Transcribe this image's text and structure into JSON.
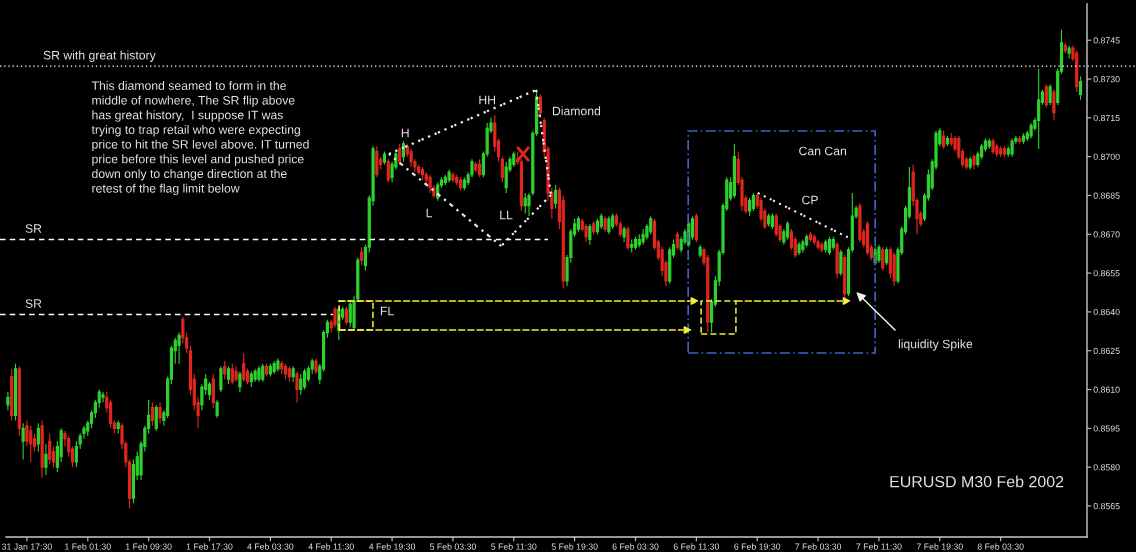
{
  "chart_data": {
    "type": "candlestick",
    "categories": [
      null,
      null,
      null,
      null,
      null,
      "31 Jan 17:30",
      null,
      null,
      null,
      null,
      null,
      null,
      null,
      null,
      null,
      null,
      null,
      null,
      null,
      null,
      null,
      "1 Feb 01:30",
      null,
      null,
      null,
      null,
      null,
      null,
      null,
      null,
      null,
      null,
      null,
      null,
      null,
      null,
      null,
      "1 Feb 09:30",
      null,
      null,
      null,
      null,
      null,
      null,
      null,
      null,
      null,
      null,
      null,
      null,
      null,
      null,
      null,
      "1 Feb 17:30",
      null,
      null,
      null,
      null,
      null,
      null,
      null,
      null,
      null,
      null,
      null,
      null,
      null,
      null,
      null,
      "4 Feb 03:30",
      null,
      null,
      null,
      null,
      null,
      null,
      null,
      null,
      null,
      null,
      null,
      null,
      null,
      null,
      null,
      "4 Feb 11:30",
      null,
      null,
      null,
      null,
      null,
      null,
      null,
      null,
      null,
      null,
      null,
      null,
      null,
      null,
      null,
      "4 Feb 19:30",
      null,
      null,
      null,
      null,
      null,
      null,
      null,
      null,
      null,
      null,
      null,
      null,
      null,
      null,
      null,
      "5 Feb 03:30",
      null,
      null,
      null,
      null,
      null,
      null,
      null,
      null,
      null,
      null,
      null,
      null,
      null,
      null,
      null,
      "5 Feb 11:30",
      null,
      null,
      null,
      null,
      null,
      null,
      null,
      null,
      null,
      null,
      null,
      null,
      null,
      null,
      null,
      "5 Feb 19:30",
      null,
      null,
      null,
      null,
      null,
      null,
      null,
      null,
      null,
      null,
      null,
      null,
      null,
      null,
      null,
      "6 Feb 03:30",
      null,
      null,
      null,
      null,
      null,
      null,
      null,
      null,
      null,
      null,
      null,
      null,
      null,
      null,
      null,
      "6 Feb 11:30",
      null,
      null,
      null,
      null,
      null,
      null,
      null,
      null,
      null,
      null,
      null,
      null,
      null,
      null,
      null,
      "6 Feb 19:30",
      null,
      null,
      null,
      null,
      null,
      null,
      null,
      null,
      null,
      null,
      null,
      null,
      null,
      null,
      null,
      "7 Feb 03:30",
      null,
      null,
      null,
      null,
      null,
      null,
      null,
      null,
      null,
      null,
      null,
      null,
      null,
      null,
      null,
      "7 Feb 11:30",
      null,
      null,
      null,
      null,
      null,
      null,
      null,
      null,
      null,
      null,
      null,
      null,
      null,
      null,
      null,
      "7 Feb 19:30",
      null,
      null,
      null,
      null,
      null,
      null,
      null,
      null,
      null,
      null,
      null,
      null,
      null,
      null,
      null,
      "8 Feb 03:30",
      null,
      null,
      null,
      null,
      null,
      null,
      null,
      null,
      null,
      null,
      null,
      null,
      null,
      null,
      null,
      null,
      null,
      null,
      null,
      null,
      null
    ],
    "ohlc": [
      [
        0.8604,
        0.8609,
        0.8602,
        0.8607
      ],
      [
        0.8615,
        0.8618,
        0.8598,
        0.86
      ],
      [
        0.86,
        0.862,
        0.8598,
        0.8618
      ],
      [
        0.8618,
        0.8619,
        0.8592,
        0.8595
      ],
      [
        0.859,
        0.8597,
        0.8583,
        0.8595
      ],
      [
        0.8596,
        0.8598,
        0.8588,
        0.859
      ],
      [
        0.8594,
        0.8596,
        0.8582,
        0.8589
      ],
      [
        0.8591,
        0.8593,
        0.8586,
        0.8588
      ],
      [
        0.8589,
        0.8597,
        0.8586,
        0.8595
      ],
      [
        0.8596,
        0.8598,
        0.8576,
        0.858
      ],
      [
        0.858,
        0.8589,
        0.8577,
        0.8585
      ],
      [
        0.859,
        0.8593,
        0.8581,
        0.8583
      ],
      [
        0.8586,
        0.8588,
        0.858,
        0.8582
      ],
      [
        0.858,
        0.859,
        0.8578,
        0.8588
      ],
      [
        0.8584,
        0.8595,
        0.8582,
        0.8594
      ],
      [
        0.8593,
        0.8594,
        0.8588,
        0.8591
      ],
      [
        0.8591,
        0.8592,
        0.8584,
        0.8586
      ],
      [
        0.8587,
        0.8588,
        0.858,
        0.8582
      ],
      [
        0.8582,
        0.859,
        0.858,
        0.8588
      ],
      [
        0.8589,
        0.8593,
        0.8587,
        0.8592
      ],
      [
        0.8593,
        0.8596,
        0.8591,
        0.8595
      ],
      [
        0.8594,
        0.8598,
        0.8592,
        0.8597
      ],
      [
        0.8597,
        0.8602,
        0.8595,
        0.8601
      ],
      [
        0.8601,
        0.8606,
        0.8599,
        0.8605
      ],
      [
        0.8605,
        0.861,
        0.8603,
        0.8609
      ],
      [
        0.8607,
        0.8609,
        0.8605,
        0.8608
      ],
      [
        0.8607,
        0.8609,
        0.8601,
        0.8603
      ],
      [
        0.8605,
        0.8606,
        0.8595,
        0.8597
      ],
      [
        0.8597,
        0.8598,
        0.8593,
        0.8595
      ],
      [
        0.8595,
        0.8598,
        0.8593,
        0.8597
      ],
      [
        0.8596,
        0.8597,
        0.8587,
        0.8589
      ],
      [
        0.8589,
        0.859,
        0.858,
        0.8582
      ],
      [
        0.8582,
        0.8583,
        0.8564,
        0.8568
      ],
      [
        0.8568,
        0.8583,
        0.8566,
        0.8581
      ],
      [
        0.8577,
        0.8586,
        0.8575,
        0.8584
      ],
      [
        0.8577,
        0.859,
        0.8575,
        0.8589
      ],
      [
        0.8588,
        0.8596,
        0.8586,
        0.8595
      ],
      [
        0.8595,
        0.8606,
        0.8593,
        0.86
      ],
      [
        0.8603,
        0.8605,
        0.8596,
        0.8598
      ],
      [
        0.8595,
        0.8604,
        0.8594,
        0.8603
      ],
      [
        0.8603,
        0.8605,
        0.8597,
        0.8599
      ],
      [
        0.8598,
        0.8602,
        0.8596,
        0.8601
      ],
      [
        0.86,
        0.8615,
        0.8599,
        0.8614
      ],
      [
        0.8614,
        0.8627,
        0.8612,
        0.8626
      ],
      [
        0.8625,
        0.863,
        0.862,
        0.8629
      ],
      [
        0.8627,
        0.8632,
        0.862,
        0.8631
      ],
      [
        0.8637,
        0.8638,
        0.8628,
        0.863
      ],
      [
        0.863,
        0.8632,
        0.8624,
        0.8626
      ],
      [
        0.8625,
        0.8627,
        0.8608,
        0.861
      ],
      [
        0.8614,
        0.8616,
        0.8602,
        0.8604
      ],
      [
        0.8605,
        0.8607,
        0.8595,
        0.86
      ],
      [
        0.8604,
        0.8612,
        0.8602,
        0.8611
      ],
      [
        0.861,
        0.8616,
        0.8608,
        0.8614
      ],
      [
        0.8608,
        0.8613,
        0.8606,
        0.8612
      ],
      [
        0.8614,
        0.8616,
        0.8603,
        0.8605
      ],
      [
        0.86,
        0.8606,
        0.8599,
        0.8605
      ],
      [
        0.861,
        0.8619,
        0.8609,
        0.8618
      ],
      [
        0.8619,
        0.8621,
        0.8614,
        0.8616
      ],
      [
        0.8614,
        0.8619,
        0.8612,
        0.8618
      ],
      [
        0.8618,
        0.862,
        0.8612,
        0.8613
      ],
      [
        0.8617,
        0.8619,
        0.8613,
        0.8614
      ],
      [
        0.8611,
        0.8617,
        0.8609,
        0.8616
      ],
      [
        0.862,
        0.8624,
        0.8613,
        0.8614
      ],
      [
        0.8617,
        0.8618,
        0.8612,
        0.8613
      ],
      [
        0.8613,
        0.8617,
        0.8611,
        0.8616
      ],
      [
        0.8614,
        0.8618,
        0.8613,
        0.8617
      ],
      [
        0.8614,
        0.8619,
        0.8613,
        0.8618
      ],
      [
        0.8614,
        0.862,
        0.8613,
        0.8619
      ],
      [
        0.8619,
        0.862,
        0.8615,
        0.8616
      ],
      [
        0.8616,
        0.862,
        0.8615,
        0.8619
      ],
      [
        0.8617,
        0.8621,
        0.8616,
        0.862
      ],
      [
        0.8618,
        0.8622,
        0.8617,
        0.8621
      ],
      [
        0.862,
        0.8621,
        0.8616,
        0.8618
      ],
      [
        0.8619,
        0.862,
        0.8614,
        0.8616
      ],
      [
        0.8618,
        0.8619,
        0.8613,
        0.8615
      ],
      [
        0.8615,
        0.8619,
        0.8613,
        0.8618
      ],
      [
        0.8616,
        0.8617,
        0.8605,
        0.861
      ],
      [
        0.861,
        0.8616,
        0.8608,
        0.8614
      ],
      [
        0.8611,
        0.8618,
        0.861,
        0.8617
      ],
      [
        0.8614,
        0.8619,
        0.8613,
        0.8618
      ],
      [
        0.8618,
        0.8622,
        0.8616,
        0.8621
      ],
      [
        0.8621,
        0.8622,
        0.8616,
        0.8617
      ],
      [
        0.8614,
        0.862,
        0.8612,
        0.8619
      ],
      [
        0.8618,
        0.8633,
        0.8617,
        0.8632
      ],
      [
        0.8632,
        0.8637,
        0.863,
        0.8636
      ],
      [
        0.8636,
        0.8637,
        0.8632,
        0.8634
      ],
      [
        0.8641,
        0.8642,
        0.8634,
        0.8635
      ],
      [
        0.8633,
        0.8642,
        0.8629,
        0.8641
      ],
      [
        0.8638,
        0.8642,
        0.8637,
        0.8641
      ],
      [
        0.8641,
        0.8642,
        0.8635,
        0.8636
      ],
      [
        0.8636,
        0.8644,
        0.8634,
        0.8643
      ],
      [
        0.8634,
        0.8646,
        0.8633,
        0.8644
      ],
      [
        0.8645,
        0.8661,
        0.8644,
        0.866
      ],
      [
        0.8663,
        0.8665,
        0.8658,
        0.866
      ],
      [
        0.8658,
        0.8666,
        0.8656,
        0.8665
      ],
      [
        0.8665,
        0.8685,
        0.8663,
        0.8684
      ],
      [
        0.8683,
        0.8704,
        0.8681,
        0.8703
      ],
      [
        0.8702,
        0.8704,
        0.8692,
        0.8693
      ],
      [
        0.8699,
        0.87,
        0.8695,
        0.8697
      ],
      [
        0.8698,
        0.8702,
        0.8697,
        0.8701
      ],
      [
        0.8698,
        0.8699,
        0.869,
        0.8691
      ],
      [
        0.8692,
        0.8698,
        0.869,
        0.8697
      ],
      [
        0.8696,
        0.8702,
        0.8695,
        0.8701
      ],
      [
        0.8703,
        0.8705,
        0.8697,
        0.8698
      ],
      [
        0.87,
        0.8706,
        0.8698,
        0.8705
      ],
      [
        0.8704,
        0.8705,
        0.87,
        0.8701
      ],
      [
        0.8702,
        0.8703,
        0.8696,
        0.8698
      ],
      [
        0.8698,
        0.8699,
        0.8694,
        0.8696
      ],
      [
        0.8696,
        0.8697,
        0.8693,
        0.8694
      ],
      [
        0.8695,
        0.8696,
        0.8691,
        0.8693
      ],
      [
        0.8693,
        0.8694,
        0.8689,
        0.8691
      ],
      [
        0.8692,
        0.8693,
        0.8686,
        0.8688
      ],
      [
        0.8688,
        0.8689,
        0.8684,
        0.8685
      ],
      [
        0.8684,
        0.869,
        0.8683,
        0.8689
      ],
      [
        0.8689,
        0.8692,
        0.8688,
        0.8691
      ],
      [
        0.869,
        0.8693,
        0.8689,
        0.8692
      ],
      [
        0.8691,
        0.8695,
        0.869,
        0.8694
      ],
      [
        0.8693,
        0.8694,
        0.869,
        0.8691
      ],
      [
        0.8692,
        0.8693,
        0.8689,
        0.869
      ],
      [
        0.8691,
        0.8692,
        0.8687,
        0.8688
      ],
      [
        0.8688,
        0.8692,
        0.8687,
        0.8691
      ],
      [
        0.869,
        0.8694,
        0.8689,
        0.8693
      ],
      [
        0.8693,
        0.8699,
        0.8692,
        0.8698
      ],
      [
        0.8697,
        0.8698,
        0.8694,
        0.8695
      ],
      [
        0.8697,
        0.8699,
        0.8692,
        0.8693
      ],
      [
        0.8693,
        0.8702,
        0.8692,
        0.8701
      ],
      [
        0.8701,
        0.8713,
        0.87,
        0.8711
      ],
      [
        0.871,
        0.8715,
        0.8709,
        0.8713
      ],
      [
        0.8713,
        0.8716,
        0.8702,
        0.8704
      ],
      [
        0.8706,
        0.8707,
        0.8698,
        0.87
      ],
      [
        0.8699,
        0.87,
        0.869,
        0.8692
      ],
      [
        0.8688,
        0.8698,
        0.8686,
        0.8696
      ],
      [
        0.8695,
        0.87,
        0.8694,
        0.8699
      ],
      [
        0.8697,
        0.8702,
        0.8696,
        0.8701
      ],
      [
        0.8699,
        0.8702,
        0.8697,
        0.8698
      ],
      [
        0.8698,
        0.8699,
        0.8679,
        0.8681
      ],
      [
        0.8681,
        0.8686,
        0.8678,
        0.8684
      ],
      [
        0.8681,
        0.8686,
        0.8677,
        0.8685
      ],
      [
        0.8686,
        0.871,
        0.8685,
        0.8709
      ],
      [
        0.8709,
        0.8726,
        0.8708,
        0.8723
      ],
      [
        0.8723,
        0.8724,
        0.8715,
        0.8717
      ],
      [
        0.8714,
        0.8715,
        0.87,
        0.8702
      ],
      [
        0.8703,
        0.8704,
        0.8683,
        0.8686
      ],
      [
        0.8686,
        0.8688,
        0.8676,
        0.868
      ],
      [
        0.8682,
        0.8689,
        0.868,
        0.8687
      ],
      [
        0.8687,
        0.8688,
        0.8672,
        0.8675
      ],
      [
        0.8683,
        0.8685,
        0.8649,
        0.8652
      ],
      [
        0.8652,
        0.8662,
        0.865,
        0.8661
      ],
      [
        0.8661,
        0.8672,
        0.8659,
        0.8671
      ],
      [
        0.867,
        0.8676,
        0.8669,
        0.8674
      ],
      [
        0.8672,
        0.8677,
        0.8671,
        0.8676
      ],
      [
        0.8675,
        0.8676,
        0.8671,
        0.8672
      ],
      [
        0.8673,
        0.8674,
        0.8667,
        0.8669
      ],
      [
        0.8668,
        0.8674,
        0.8666,
        0.8673
      ],
      [
        0.8674,
        0.8675,
        0.867,
        0.8671
      ],
      [
        0.8671,
        0.8676,
        0.867,
        0.8675
      ],
      [
        0.8673,
        0.8678,
        0.8672,
        0.8677
      ],
      [
        0.8676,
        0.8677,
        0.8671,
        0.8672
      ],
      [
        0.8671,
        0.8677,
        0.867,
        0.8676
      ],
      [
        0.8673,
        0.8678,
        0.8672,
        0.8677
      ],
      [
        0.8677,
        0.8678,
        0.8673,
        0.8674
      ],
      [
        0.8674,
        0.8675,
        0.8669,
        0.867
      ],
      [
        0.8669,
        0.8673,
        0.8667,
        0.8672
      ],
      [
        0.8672,
        0.8673,
        0.8664,
        0.8665
      ],
      [
        0.8665,
        0.8668,
        0.8663,
        0.8666
      ],
      [
        0.8665,
        0.8669,
        0.8664,
        0.8668
      ],
      [
        0.8666,
        0.867,
        0.8665,
        0.8668
      ],
      [
        0.8667,
        0.8672,
        0.8666,
        0.867
      ],
      [
        0.8669,
        0.8674,
        0.8668,
        0.8673
      ],
      [
        0.8671,
        0.8677,
        0.867,
        0.8676
      ],
      [
        0.8675,
        0.8676,
        0.8664,
        0.8665
      ],
      [
        0.8667,
        0.8668,
        0.866,
        0.8661
      ],
      [
        0.8664,
        0.8665,
        0.8654,
        0.8656
      ],
      [
        0.8659,
        0.866,
        0.865,
        0.8652
      ],
      [
        0.8652,
        0.8665,
        0.8651,
        0.8664
      ],
      [
        0.8662,
        0.8668,
        0.8661,
        0.8666
      ],
      [
        0.867,
        0.8671,
        0.8664,
        0.8665
      ],
      [
        0.8664,
        0.8669,
        0.8663,
        0.8668
      ],
      [
        0.8667,
        0.8672,
        0.8666,
        0.8671
      ],
      [
        0.8666,
        0.8675,
        0.8665,
        0.8674
      ],
      [
        0.8669,
        0.8677,
        0.8668,
        0.8676
      ],
      [
        0.8677,
        0.8678,
        0.8667,
        0.8668
      ],
      [
        0.8662,
        0.8666,
        0.8661,
        0.8665
      ],
      [
        0.8664,
        0.8665,
        0.8658,
        0.8659
      ],
      [
        0.8661,
        0.8662,
        0.8632,
        0.8636
      ],
      [
        0.8636,
        0.8645,
        0.8632,
        0.8644
      ],
      [
        0.8643,
        0.8654,
        0.8642,
        0.8652
      ],
      [
        0.8652,
        0.8664,
        0.865,
        0.8663
      ],
      [
        0.8663,
        0.8682,
        0.8662,
        0.8681
      ],
      [
        0.868,
        0.8692,
        0.8679,
        0.8691
      ],
      [
        0.8684,
        0.8692,
        0.8683,
        0.869
      ],
      [
        0.8685,
        0.8705,
        0.8684,
        0.87
      ],
      [
        0.8699,
        0.8702,
        0.8689,
        0.869
      ],
      [
        0.8691,
        0.8692,
        0.8679,
        0.8681
      ],
      [
        0.8684,
        0.8685,
        0.8678,
        0.8679
      ],
      [
        0.8679,
        0.8684,
        0.8677,
        0.8683
      ],
      [
        0.868,
        0.8686,
        0.8679,
        0.8685
      ],
      [
        0.8685,
        0.8686,
        0.868,
        0.8681
      ],
      [
        0.8683,
        0.8684,
        0.8675,
        0.8676
      ],
      [
        0.8679,
        0.868,
        0.8672,
        0.8673
      ],
      [
        0.8674,
        0.8678,
        0.8673,
        0.8677
      ],
      [
        0.8673,
        0.8678,
        0.8672,
        0.8677
      ],
      [
        0.8677,
        0.8678,
        0.8669,
        0.867
      ],
      [
        0.8673,
        0.8674,
        0.8667,
        0.8668
      ],
      [
        0.8667,
        0.8672,
        0.8666,
        0.8671
      ],
      [
        0.8669,
        0.8675,
        0.8668,
        0.8674
      ],
      [
        0.8671,
        0.8672,
        0.8664,
        0.8665
      ],
      [
        0.8668,
        0.8669,
        0.8661,
        0.8662
      ],
      [
        0.8663,
        0.8667,
        0.8662,
        0.8666
      ],
      [
        0.8664,
        0.8668,
        0.8663,
        0.8667
      ],
      [
        0.8666,
        0.867,
        0.8665,
        0.8669
      ],
      [
        0.867,
        0.8671,
        0.8667,
        0.8668
      ],
      [
        0.8669,
        0.867,
        0.8666,
        0.8667
      ],
      [
        0.8667,
        0.8668,
        0.8664,
        0.8665
      ],
      [
        0.8666,
        0.8667,
        0.8663,
        0.8664
      ],
      [
        0.8664,
        0.8668,
        0.8663,
        0.8667
      ],
      [
        0.8663,
        0.8669,
        0.8662,
        0.8668
      ],
      [
        0.8665,
        0.8669,
        0.8664,
        0.8668
      ],
      [
        0.8666,
        0.8667,
        0.8653,
        0.8655
      ],
      [
        0.8655,
        0.8664,
        0.8654,
        0.8663
      ],
      [
        0.8661,
        0.8662,
        0.8645,
        0.8647
      ],
      [
        0.8647,
        0.8665,
        0.8646,
        0.8664
      ],
      [
        0.8664,
        0.8686,
        0.8663,
        0.8677
      ],
      [
        0.8677,
        0.8681,
        0.8676,
        0.868
      ],
      [
        0.8681,
        0.8682,
        0.8667,
        0.8668
      ],
      [
        0.8671,
        0.8672,
        0.8665,
        0.8666
      ],
      [
        0.8674,
        0.8675,
        0.8662,
        0.8663
      ],
      [
        0.8665,
        0.8666,
        0.866,
        0.8661
      ],
      [
        0.8659,
        0.8665,
        0.8658,
        0.8664
      ],
      [
        0.866,
        0.8666,
        0.8659,
        0.8665
      ],
      [
        0.8664,
        0.8665,
        0.8656,
        0.8657
      ],
      [
        0.8659,
        0.8665,
        0.8658,
        0.8664
      ],
      [
        0.8664,
        0.8665,
        0.8653,
        0.8655
      ],
      [
        0.8662,
        0.8663,
        0.865,
        0.8652
      ],
      [
        0.8652,
        0.8665,
        0.8651,
        0.8664
      ],
      [
        0.8663,
        0.8673,
        0.8662,
        0.8672
      ],
      [
        0.8671,
        0.8681,
        0.867,
        0.868
      ],
      [
        0.8677,
        0.8696,
        0.8676,
        0.8688
      ],
      [
        0.8694,
        0.8697,
        0.8681,
        0.8683
      ],
      [
        0.8683,
        0.8684,
        0.867,
        0.8676
      ],
      [
        0.8678,
        0.8679,
        0.8673,
        0.8674
      ],
      [
        0.8676,
        0.8686,
        0.8675,
        0.8685
      ],
      [
        0.8684,
        0.8695,
        0.8683,
        0.8693
      ],
      [
        0.8688,
        0.8699,
        0.8687,
        0.8698
      ],
      [
        0.8696,
        0.871,
        0.8695,
        0.8709
      ],
      [
        0.8705,
        0.8711,
        0.8704,
        0.871
      ],
      [
        0.8708,
        0.871,
        0.8703,
        0.8704
      ],
      [
        0.8705,
        0.8708,
        0.8704,
        0.8707
      ],
      [
        0.8707,
        0.8709,
        0.8704,
        0.8705
      ],
      [
        0.8707,
        0.8708,
        0.8702,
        0.8703
      ],
      [
        0.8707,
        0.8708,
        0.8699,
        0.87
      ],
      [
        0.8702,
        0.8703,
        0.8696,
        0.8697
      ],
      [
        0.8699,
        0.87,
        0.8695,
        0.8696
      ],
      [
        0.8696,
        0.87,
        0.8695,
        0.8699
      ],
      [
        0.87,
        0.8701,
        0.8695,
        0.8697
      ],
      [
        0.8697,
        0.8702,
        0.8696,
        0.8701
      ],
      [
        0.87,
        0.8705,
        0.8699,
        0.8704
      ],
      [
        0.8703,
        0.8707,
        0.8702,
        0.8706
      ],
      [
        0.8704,
        0.8707,
        0.8703,
        0.8706
      ],
      [
        0.8706,
        0.8707,
        0.8701,
        0.8702
      ],
      [
        0.8704,
        0.8705,
        0.87,
        0.8701
      ],
      [
        0.8703,
        0.8704,
        0.87,
        0.8701
      ],
      [
        0.8703,
        0.8704,
        0.87,
        0.8701
      ],
      [
        0.8701,
        0.8704,
        0.87,
        0.8703
      ],
      [
        0.8701,
        0.8707,
        0.87,
        0.8706
      ],
      [
        0.8706,
        0.8708,
        0.8705,
        0.8707
      ],
      [
        0.8707,
        0.8708,
        0.8705,
        0.8706
      ],
      [
        0.8706,
        0.8709,
        0.8705,
        0.8708
      ],
      [
        0.8707,
        0.871,
        0.8706,
        0.8709
      ],
      [
        0.8708,
        0.8713,
        0.8707,
        0.8712
      ],
      [
        0.8711,
        0.8715,
        0.871,
        0.8714
      ],
      [
        0.8714,
        0.8734,
        0.8703,
        0.8722
      ],
      [
        0.8721,
        0.8726,
        0.872,
        0.8725
      ],
      [
        0.8727,
        0.8728,
        0.8719,
        0.872
      ],
      [
        0.8721,
        0.8728,
        0.872,
        0.8727
      ],
      [
        0.8725,
        0.8726,
        0.8714,
        0.8717
      ],
      [
        0.8721,
        0.8734,
        0.872,
        0.8733
      ],
      [
        0.8733,
        0.8749,
        0.8732,
        0.8744
      ],
      [
        0.8743,
        0.8744,
        0.874,
        0.8741
      ],
      [
        0.874,
        0.8743,
        0.8738,
        0.8742
      ],
      [
        0.8742,
        0.8743,
        0.8737,
        0.8738
      ],
      [
        0.874,
        0.8741,
        0.8725,
        0.8727
      ],
      [
        0.8724,
        0.8731,
        0.8722,
        0.8729
      ]
    ],
    "ylim": [
      0.8553,
      0.8759
    ],
    "yticks": [
      0.8565,
      {
        "value": 0.858,
        "label": "0.8580"
      },
      0.8595,
      {
        "value": 0.861,
        "label": "0.8610"
      },
      0.8625,
      {
        "value": 0.864,
        "label": "0.8640"
      },
      0.8655,
      {
        "value": 0.867,
        "label": "0.8670"
      },
      0.8685,
      {
        "value": 0.87,
        "label": "0.8700"
      },
      0.8715,
      {
        "value": 0.873,
        "label": "0.8730"
      },
      0.8745
    ],
    "ref_lines": [
      {
        "axis": "y",
        "value": 0.8735,
        "label": "SR with great history",
        "color": "#ffffff",
        "line_style": "dotted"
      },
      {
        "axis": "y",
        "value": 0.8668,
        "label": "SR",
        "color": "#ffffff",
        "line_style": "dashed"
      },
      {
        "axis": "y",
        "value": 0.8639,
        "label": "SR",
        "color": "#ffffff",
        "line_style": "dashed"
      }
    ],
    "annotations": [
      "This diamond seamed to form in the\nmiddle of nowhere, The SR flip above\nhas great history,  I suppose IT was\ntrying to trap retail who were expecting\nprice to hit the SR level above. IT turned\nprice before this level and pushed price\ndown only to change direction at the\nretest of the flag limit below",
      "H",
      "HH",
      "L",
      "LL",
      "Diamond",
      "FL",
      "Can Can",
      "CP",
      "liquidity Spike",
      "EURUSD M30 Feb 2002"
    ]
  }
}
